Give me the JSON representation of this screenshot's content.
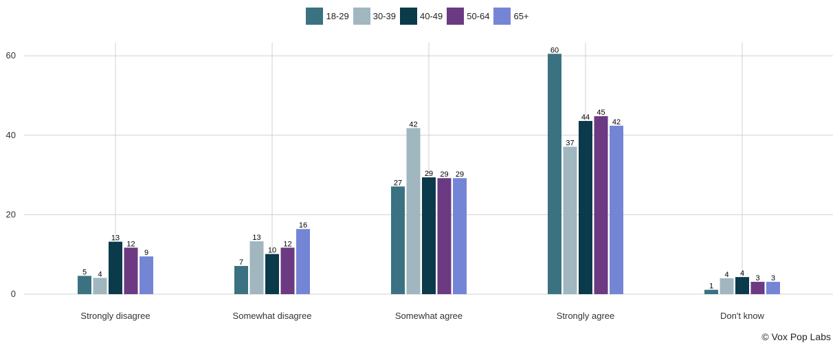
{
  "chart_data": {
    "type": "bar",
    "categories": [
      "Strongly disagree",
      "Somewhat disagree",
      "Somewhat agree",
      "Strongly agree",
      "Don't know"
    ],
    "series": [
      {
        "name": "18-29",
        "color": "#3a7282",
        "values": [
          4.6,
          7.1,
          27.1,
          60.5,
          1.1
        ],
        "labels": [
          "5",
          "7",
          "27",
          "60",
          "1"
        ]
      },
      {
        "name": "30-39",
        "color": "#a0b7bf",
        "values": [
          4.1,
          13.3,
          41.8,
          37.1,
          4.0
        ],
        "labels": [
          "4",
          "13",
          "42",
          "37",
          "4"
        ]
      },
      {
        "name": "40-49",
        "color": "#0b3a4a",
        "values": [
          13.2,
          10.1,
          29.4,
          43.6,
          4.3
        ],
        "labels": [
          "13",
          "10",
          "29",
          "44",
          "4"
        ]
      },
      {
        "name": "50-64",
        "color": "#6b3a82",
        "values": [
          11.7,
          11.7,
          29.2,
          44.8,
          3.1
        ],
        "labels": [
          "12",
          "12",
          "29",
          "45",
          "3"
        ]
      },
      {
        "name": "65+",
        "color": "#7585d6",
        "values": [
          9.5,
          16.4,
          29.2,
          42.4,
          3.1
        ],
        "labels": [
          "9",
          "16",
          "29",
          "42",
          "3"
        ]
      }
    ],
    "y_ticks": [
      "0",
      "20",
      "40",
      "60"
    ],
    "ylim": [
      0,
      63
    ],
    "grid": true,
    "legend_position": "top-center"
  },
  "credit": "© Vox Pop Labs"
}
